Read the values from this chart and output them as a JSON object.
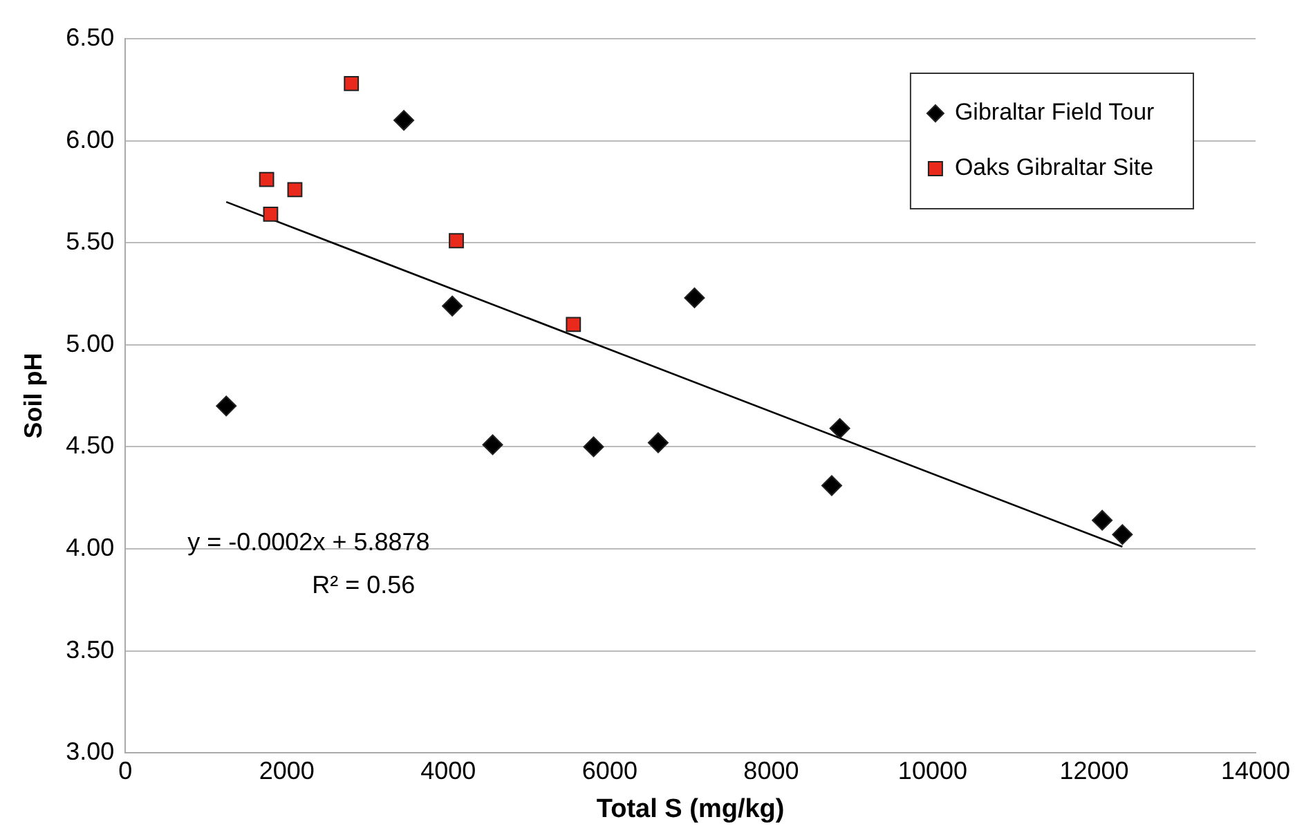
{
  "chart_data": {
    "type": "scatter",
    "xlabel": "Total S (mg/kg)",
    "ylabel": "Soil pH",
    "xlim": [
      0,
      14000
    ],
    "xticks": [
      0,
      2000,
      4000,
      6000,
      8000,
      10000,
      12000,
      14000
    ],
    "ylim": [
      3,
      6.5
    ],
    "yticks": [
      {
        "value": 3,
        "label": "3.00"
      },
      {
        "value": 3.5,
        "label": "3.50"
      },
      {
        "value": 4,
        "label": "4.00"
      },
      {
        "value": 4.5,
        "label": "4.50"
      },
      {
        "value": 5,
        "label": "5.00"
      },
      {
        "value": 5.5,
        "label": "5.50"
      },
      {
        "value": 6,
        "label": "6.00"
      },
      {
        "value": 6.5,
        "label": "6.50"
      }
    ],
    "grid": "y",
    "legend": "top right",
    "series": [
      {
        "name": "Gibraltar Field Tour",
        "color": "#000000",
        "marker": "diamond",
        "x": [
          1250,
          3450,
          4050,
          4550,
          5800,
          6600,
          7050,
          8750,
          8850,
          12100,
          12350
        ],
        "values": [
          4.7,
          6.1,
          5.19,
          4.51,
          4.5,
          4.52,
          5.23,
          4.31,
          4.59,
          4.14,
          4.07
        ]
      },
      {
        "name": "Oaks Gibraltar Site",
        "color": "#e8291c",
        "marker": "square",
        "x": [
          1750,
          1800,
          2100,
          2800,
          4100,
          5550
        ],
        "values": [
          5.81,
          5.64,
          5.76,
          6.28,
          5.51,
          5.1
        ]
      },
      {
        "type": "line",
        "color": "#000000",
        "marker": "none",
        "x": [
          1250,
          12350
        ],
        "values": [
          5.7,
          4.01
        ]
      }
    ],
    "annotations": [
      "y = -0.0002x + 5.8878",
      "R² = 0.56"
    ]
  }
}
